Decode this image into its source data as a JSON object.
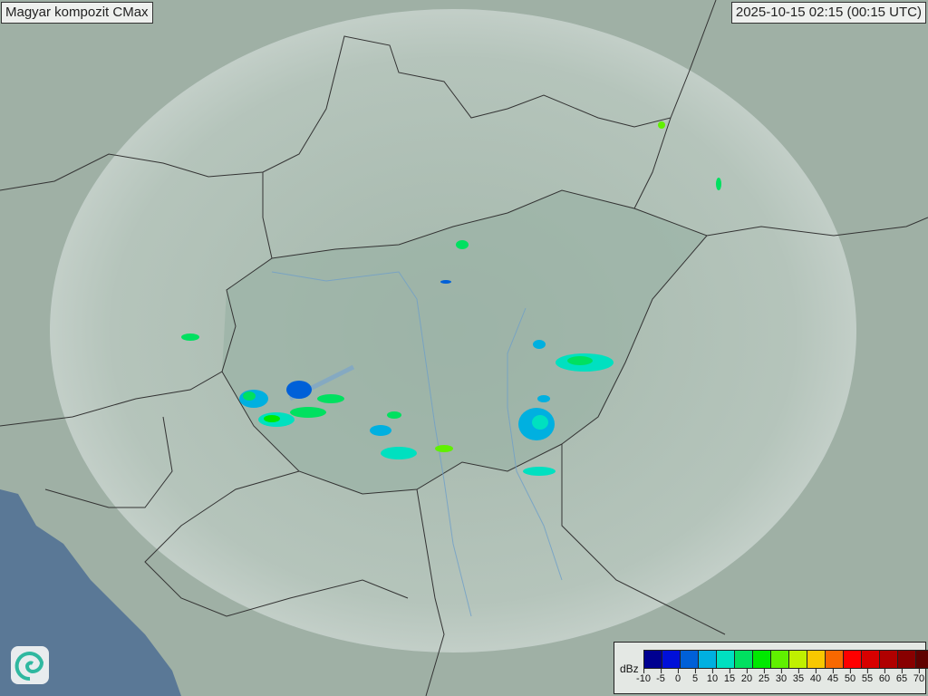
{
  "header": {
    "title": "Magyar kompozit  CMax",
    "timestamp": "2025-10-15 02:15 (00:15 UTC)"
  },
  "legend": {
    "unit": "dBz",
    "ticks": [
      "-10",
      "-5",
      "0",
      "5",
      "10",
      "15",
      "20",
      "25",
      "30",
      "35",
      "40",
      "45",
      "50",
      "55",
      "60",
      "65",
      "70"
    ],
    "colors": [
      "#000090",
      "#0010d8",
      "#0060d8",
      "#00b0e0",
      "#00e0c0",
      "#00e060",
      "#00e800",
      "#60f000",
      "#c0f000",
      "#f8c800",
      "#f86800",
      "#ff0000",
      "#d80000",
      "#b00000",
      "#880000",
      "#600000"
    ]
  },
  "map": {
    "colors": {
      "land": "#a9b8ad",
      "sea": "#5a7896",
      "radar_coverage": "#c6d2cb",
      "radar_fill_inner": "#9fb5a8"
    }
  },
  "logo": {
    "icon": "swirl-logo-icon"
  }
}
